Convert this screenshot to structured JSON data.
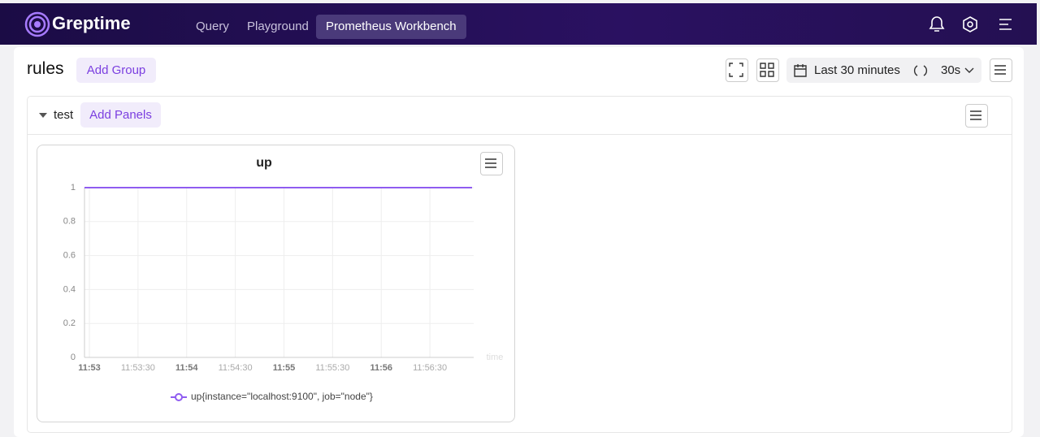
{
  "header": {
    "logo": "Greptime",
    "nav": [
      "Query",
      "Playground",
      "Prometheus Workbench"
    ]
  },
  "page": {
    "title": "rules",
    "add_group": "Add Group",
    "time_range": "Last 30 minutes",
    "refresh": "30s"
  },
  "group": {
    "name": "test",
    "add_panels": "Add Panels"
  },
  "chart_data": {
    "type": "line",
    "title": "up",
    "xlabel": "time",
    "x": [
      "11:52:57",
      "11:53:57",
      "11:54:57",
      "11:55:57",
      "11:56:56"
    ],
    "series": [
      {
        "name": "up{instance=\"localhost:9100\", job=\"node\"}",
        "color": "#8f5cf0",
        "values": [
          1,
          1,
          1,
          1,
          1
        ]
      }
    ],
    "xlim": [
      "11:52:57",
      "11:56:57"
    ],
    "xticks": [
      {
        "value": "11:53:00",
        "label": "11:53"
      },
      "11:53:30",
      {
        "value": "11:54:00",
        "label": "11:54"
      },
      "11:54:30",
      {
        "value": "11:55:00",
        "label": "11:55"
      },
      "11:55:30",
      {
        "value": "11:56:00",
        "label": "11:56"
      },
      "11:56:30"
    ],
    "ylim": [
      0,
      1
    ],
    "yticks": [
      0,
      0.2,
      0.4,
      0.6,
      0.8,
      1
    ],
    "grid": true
  }
}
